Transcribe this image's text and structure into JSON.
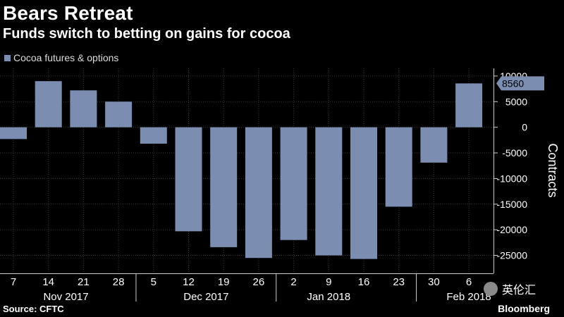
{
  "title": "Bears Retreat",
  "subtitle": "Funds switch to betting on gains for cocoa",
  "source": "Source: CFTC",
  "brand": "Bloomberg",
  "watermark": "英伦汇",
  "colors": {
    "bar": "#7b8db0",
    "background": "#000000",
    "grid": "#3a3a3a",
    "text": "#ffffff"
  },
  "chart_data": {
    "type": "bar",
    "title": "Bears Retreat",
    "subtitle": "Funds switch to betting on gains for cocoa",
    "series": [
      {
        "name": "Cocoa futures & options",
        "values": [
          -2300,
          9000,
          7200,
          5000,
          -3200,
          -20300,
          -23400,
          -25500,
          -22000,
          -25000,
          -25700,
          -15500,
          -6900,
          8560
        ]
      }
    ],
    "categories": [
      "7",
      "14",
      "21",
      "28",
      "5",
      "12",
      "19",
      "26",
      "2",
      "9",
      "16",
      "23",
      "30",
      "6"
    ],
    "month_labels": [
      "Nov 2017",
      "Dec 2017",
      "Jan 2018",
      "Feb 2018"
    ],
    "month_centers": [
      2,
      6,
      9.5,
      13.5
    ],
    "month_separators_after": [
      3,
      7,
      11
    ],
    "xlabel": "",
    "ylabel": "Contracts",
    "ylim": [
      -28500,
      11500
    ],
    "yticks": [
      10000,
      5000,
      0,
      -5000,
      -10000,
      -15000,
      -20000,
      -25000
    ],
    "ytick_labels": [
      "10000",
      "5000",
      "0",
      "-5000",
      "-10000",
      "-15000",
      "-20000",
      "-25000"
    ],
    "annotation": {
      "label": "8560",
      "value": 8560
    },
    "grid": true,
    "legend": "top-left"
  }
}
